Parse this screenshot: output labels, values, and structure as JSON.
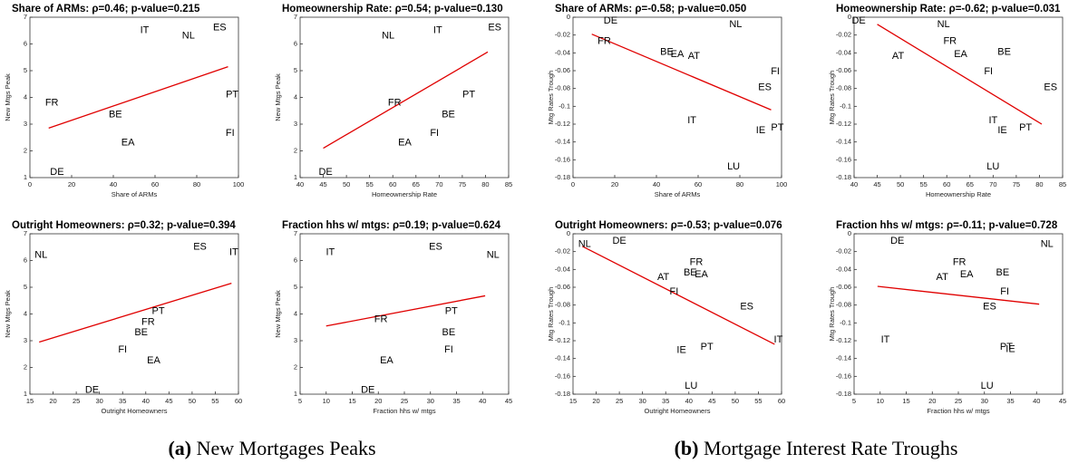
{
  "chart_data": [
    {
      "type": "scatter",
      "title": "Share of ARMs: ρ=0.46;  p-value=0.215",
      "xlabel": "Share of ARMs",
      "ylabel": "New Mtgs Peak",
      "xlim": [
        0,
        100
      ],
      "xticks": [
        0,
        20,
        40,
        60,
        80,
        100
      ],
      "ylim": [
        1,
        7
      ],
      "yticks": [
        1,
        2,
        3,
        4,
        5,
        6,
        7
      ],
      "grid": false,
      "points": {
        "labels": [
          "IT",
          "NL",
          "ES",
          "FR",
          "BE",
          "PT",
          "EA",
          "FI",
          "DE"
        ],
        "x": [
          55,
          76,
          91,
          10.5,
          41,
          97,
          47,
          96,
          13
        ],
        "y": [
          6.5,
          6.3,
          6.6,
          3.8,
          3.35,
          4.1,
          2.3,
          2.65,
          1.2
        ]
      },
      "fit": {
        "color": "#e00000",
        "x": [
          9,
          95
        ],
        "y": [
          2.85,
          5.15
        ]
      }
    },
    {
      "type": "scatter",
      "title": "Homeownership Rate: ρ=0.54;  p-value=0.130",
      "xlabel": "Homeownership Rate",
      "ylabel": "New Mtgs Peak",
      "xlim": [
        40,
        85
      ],
      "xticks": [
        40,
        45,
        50,
        55,
        60,
        65,
        70,
        75,
        80,
        85
      ],
      "ylim": [
        1,
        7
      ],
      "yticks": [
        1,
        2,
        3,
        4,
        5,
        6,
        7
      ],
      "grid": false,
      "points": {
        "labels": [
          "NL",
          "IT",
          "ES",
          "FR",
          "PT",
          "BE",
          "FI",
          "EA",
          "DE"
        ],
        "x": [
          59,
          69.7,
          82,
          60.4,
          76.4,
          72,
          69,
          62.6,
          45.5
        ],
        "y": [
          6.3,
          6.5,
          6.6,
          3.8,
          4.1,
          3.35,
          2.65,
          2.3,
          1.2
        ]
      },
      "fit": {
        "color": "#e00000",
        "x": [
          45,
          80.5
        ],
        "y": [
          2.1,
          5.7
        ]
      }
    },
    {
      "type": "scatter",
      "title": "Share of ARMs: ρ=-0.58;  p-value=0.050",
      "xlabel": "Share of ARMs",
      "ylabel": "Mtg Rates Trough",
      "xlim": [
        0,
        100
      ],
      "xticks": [
        0,
        20,
        40,
        60,
        80,
        100
      ],
      "ylim": [
        -0.18,
        0
      ],
      "yticks": [
        -0.18,
        -0.16,
        -0.14,
        -0.12,
        -0.1,
        -0.08,
        -0.06,
        -0.04,
        -0.02,
        0
      ],
      "grid": false,
      "points": {
        "labels": [
          "DE",
          "NL",
          "FR",
          "BE",
          "EA",
          "AT",
          "FI",
          "ES",
          "IT",
          "IE",
          "PT",
          "LU"
        ],
        "x": [
          18,
          78,
          15,
          45,
          50,
          58,
          97,
          92,
          57,
          90,
          98,
          77
        ],
        "y": [
          -0.004,
          -0.008,
          -0.027,
          -0.039,
          -0.042,
          -0.044,
          -0.061,
          -0.079,
          -0.116,
          -0.127,
          -0.124,
          -0.168
        ]
      },
      "fit": {
        "color": "#e00000",
        "x": [
          9,
          95
        ],
        "y": [
          -0.019,
          -0.104
        ]
      }
    },
    {
      "type": "scatter",
      "title": "Homeownership Rate: ρ=-0.62;  p-value=0.031",
      "xlabel": "Homeownership Rate",
      "ylabel": "Mtg Rates Trough",
      "xlim": [
        40,
        85
      ],
      "xticks": [
        40,
        45,
        50,
        55,
        60,
        65,
        70,
        75,
        80,
        85
      ],
      "ylim": [
        -0.18,
        0
      ],
      "yticks": [
        -0.18,
        -0.16,
        -0.14,
        -0.12,
        -0.1,
        -0.08,
        -0.06,
        -0.04,
        -0.02,
        0
      ],
      "grid": false,
      "points": {
        "labels": [
          "DE",
          "NL",
          "FR",
          "BE",
          "EA",
          "AT",
          "FI",
          "ES",
          "IT",
          "IE",
          "PT",
          "LU"
        ],
        "x": [
          41,
          59.3,
          60.7,
          72.4,
          63,
          49.5,
          69,
          82.4,
          70,
          72,
          77,
          70
        ],
        "y": [
          -0.004,
          -0.008,
          -0.027,
          -0.039,
          -0.042,
          -0.044,
          -0.061,
          -0.079,
          -0.116,
          -0.127,
          -0.124,
          -0.168
        ]
      },
      "fit": {
        "color": "#e00000",
        "x": [
          45,
          80.5
        ],
        "y": [
          -0.008,
          -0.12
        ]
      }
    },
    {
      "type": "scatter",
      "title": "Outright Homeowners: ρ=0.32;  p-value=0.394",
      "xlabel": "Outright Homeowners",
      "ylabel": "New Mtgs Peak",
      "xlim": [
        15,
        60
      ],
      "xticks": [
        15,
        20,
        25,
        30,
        35,
        40,
        45,
        50,
        55,
        60
      ],
      "ylim": [
        1,
        7
      ],
      "yticks": [
        1,
        2,
        3,
        4,
        5,
        6,
        7
      ],
      "grid": false,
      "points": {
        "labels": [
          "NL",
          "ES",
          "IT",
          "PT",
          "FR",
          "BE",
          "FI",
          "EA",
          "DE"
        ],
        "x": [
          17.4,
          51.7,
          59,
          42.7,
          40.5,
          39,
          35,
          41.7,
          28.4
        ],
        "y": [
          6.2,
          6.5,
          6.3,
          4.1,
          3.7,
          3.3,
          2.65,
          2.25,
          1.15
        ]
      },
      "fit": {
        "color": "#e00000",
        "x": [
          17,
          58.5
        ],
        "y": [
          2.95,
          5.15
        ]
      }
    },
    {
      "type": "scatter",
      "title": "Fraction hhs w/ mtgs: ρ=0.19;  p-value=0.624",
      "xlabel": "Fraction hhs w/ mtgs",
      "ylabel": "New Mtgs Peak",
      "xlim": [
        5,
        45
      ],
      "xticks": [
        5,
        10,
        15,
        20,
        25,
        30,
        35,
        40,
        45
      ],
      "ylim": [
        1,
        7
      ],
      "yticks": [
        1,
        2,
        3,
        4,
        5,
        6,
        7
      ],
      "grid": false,
      "points": {
        "labels": [
          "IT",
          "ES",
          "NL",
          "FR",
          "PT",
          "BE",
          "FI",
          "EA",
          "DE"
        ],
        "x": [
          10.8,
          31,
          42,
          20.5,
          34,
          33.5,
          33.5,
          21.6,
          18
        ],
        "y": [
          6.3,
          6.5,
          6.2,
          3.8,
          4.1,
          3.3,
          2.65,
          2.25,
          1.15
        ]
      },
      "fit": {
        "color": "#e00000",
        "x": [
          10,
          40.5
        ],
        "y": [
          3.55,
          4.68
        ]
      }
    },
    {
      "type": "scatter",
      "title": "Outright Homeowners: ρ=-0.53;  p-value=0.076",
      "xlabel": "Outright Homeowners",
      "ylabel": "Mtg Rates Trough",
      "xlim": [
        15,
        60
      ],
      "xticks": [
        15,
        20,
        25,
        30,
        35,
        40,
        45,
        50,
        55,
        60
      ],
      "ylim": [
        -0.18,
        0
      ],
      "yticks": [
        -0.18,
        -0.16,
        -0.14,
        -0.12,
        -0.1,
        -0.08,
        -0.06,
        -0.04,
        -0.02,
        0
      ],
      "grid": false,
      "points": {
        "labels": [
          "NL",
          "DE",
          "FR",
          "BE",
          "EA",
          "AT",
          "FI",
          "ES",
          "IT",
          "IE",
          "PT",
          "LU"
        ],
        "x": [
          17.5,
          25,
          41.6,
          40.3,
          42.7,
          34.5,
          36.8,
          52.5,
          59.3,
          38.4,
          43.9,
          40.5
        ],
        "y": [
          -0.012,
          -0.008,
          -0.032,
          -0.044,
          -0.046,
          -0.049,
          -0.065,
          -0.082,
          -0.119,
          -0.131,
          -0.127,
          -0.171
        ]
      },
      "fit": {
        "color": "#e00000",
        "x": [
          17,
          58.5
        ],
        "y": [
          -0.014,
          -0.124
        ]
      }
    },
    {
      "type": "scatter",
      "title": "Fraction hhs w/ mtgs: ρ=-0.11;  p-value=0.728",
      "xlabel": "Fraction hhs w/ mtgs",
      "ylabel": "Mtg Rates Trough",
      "xlim": [
        5,
        45
      ],
      "xticks": [
        5,
        10,
        15,
        20,
        25,
        30,
        35,
        40,
        45
      ],
      "ylim": [
        -0.18,
        0
      ],
      "yticks": [
        -0.18,
        -0.16,
        -0.14,
        -0.12,
        -0.1,
        -0.08,
        -0.06,
        -0.04,
        -0.02,
        0
      ],
      "grid": false,
      "points": {
        "labels": [
          "DE",
          "NL",
          "FR",
          "EA",
          "AT",
          "BE",
          "FI",
          "ES",
          "IT",
          "PT",
          "IE",
          "LU"
        ],
        "x": [
          13.3,
          42,
          25.2,
          26.6,
          21.9,
          33.5,
          33.9,
          31,
          11,
          34.2,
          35,
          30.5
        ],
        "y": [
          -0.008,
          -0.012,
          -0.032,
          -0.046,
          -0.049,
          -0.044,
          -0.065,
          -0.082,
          -0.119,
          -0.127,
          -0.13,
          -0.171
        ]
      },
      "fit": {
        "color": "#e00000",
        "x": [
          9.5,
          40.5
        ],
        "y": [
          -0.059,
          -0.079
        ]
      }
    }
  ],
  "captions": [
    {
      "label": "(a)",
      "text": "New Mortgages Peaks"
    },
    {
      "label": "(b)",
      "text": "Mortgage Interest Rate Troughs"
    }
  ]
}
